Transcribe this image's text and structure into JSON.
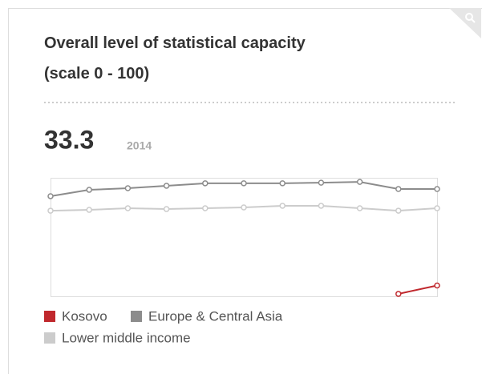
{
  "chart_data": {
    "type": "line",
    "title": "Overall level of statistical capacity (scale 0 - 100)",
    "latest_label": "2014",
    "categories": [
      null,
      null,
      null,
      null,
      null,
      null,
      null,
      null,
      null,
      null,
      null
    ],
    "ylim": [
      28,
      86
    ],
    "series": [
      {
        "name": "Kosovo",
        "color": "#c0282d",
        "values": [
          null,
          null,
          null,
          null,
          null,
          null,
          null,
          null,
          null,
          29.2,
          33.3
        ]
      },
      {
        "name": "Europe & Central Asia",
        "color": "#8c8c8c",
        "values": [
          77.0,
          80.1,
          80.9,
          82.1,
          83.3,
          83.3,
          83.3,
          83.6,
          84.0,
          80.5,
          80.5
        ]
      },
      {
        "name": "Lower middle income",
        "color": "#cccccc",
        "values": [
          69.9,
          70.3,
          71.1,
          70.7,
          71.1,
          71.5,
          72.3,
          72.3,
          71.1,
          69.9,
          71.1
        ]
      }
    ]
  }
}
